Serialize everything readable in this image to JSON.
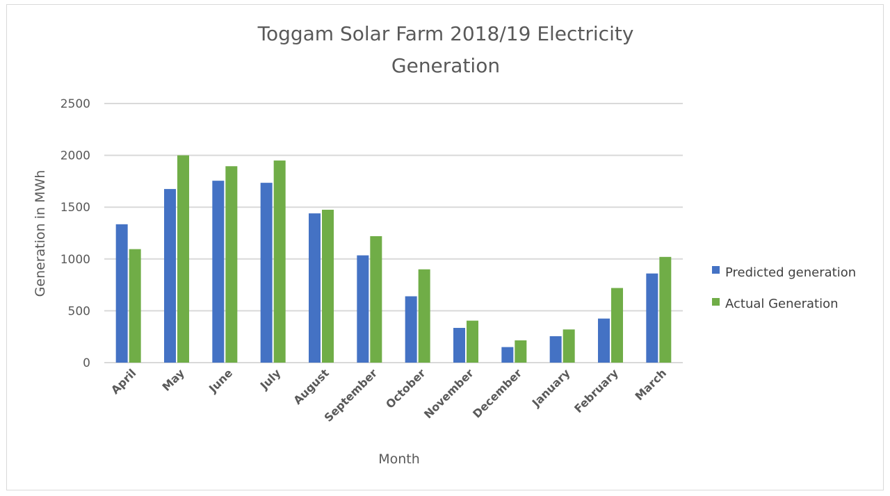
{
  "chart_data": {
    "type": "bar",
    "title": "Toggam Solar Farm 2018/19 Electricity Generation",
    "title_lines": [
      "Toggam Solar Farm 2018/19 Electricity",
      "Generation"
    ],
    "xlabel": "Month",
    "ylabel": "Generation in MWh",
    "categories": [
      "April",
      "May",
      "June",
      "July",
      "August",
      "September",
      "October",
      "November",
      "December",
      "January",
      "February",
      "March"
    ],
    "series": [
      {
        "name": "Predicted generation",
        "color": "#4472c4",
        "values": [
          1335,
          1675,
          1755,
          1735,
          1440,
          1035,
          640,
          335,
          150,
          255,
          425,
          860
        ]
      },
      {
        "name": "Actual Generation",
        "color": "#70ad47",
        "values": [
          1095,
          2000,
          1895,
          1950,
          1475,
          1220,
          900,
          405,
          215,
          320,
          720,
          1020
        ]
      }
    ],
    "ylim": [
      0,
      2500
    ],
    "yticks": [
      "0",
      "500",
      "1000",
      "1500",
      "2000",
      "2500"
    ],
    "grid": true,
    "legend_position": "right"
  }
}
